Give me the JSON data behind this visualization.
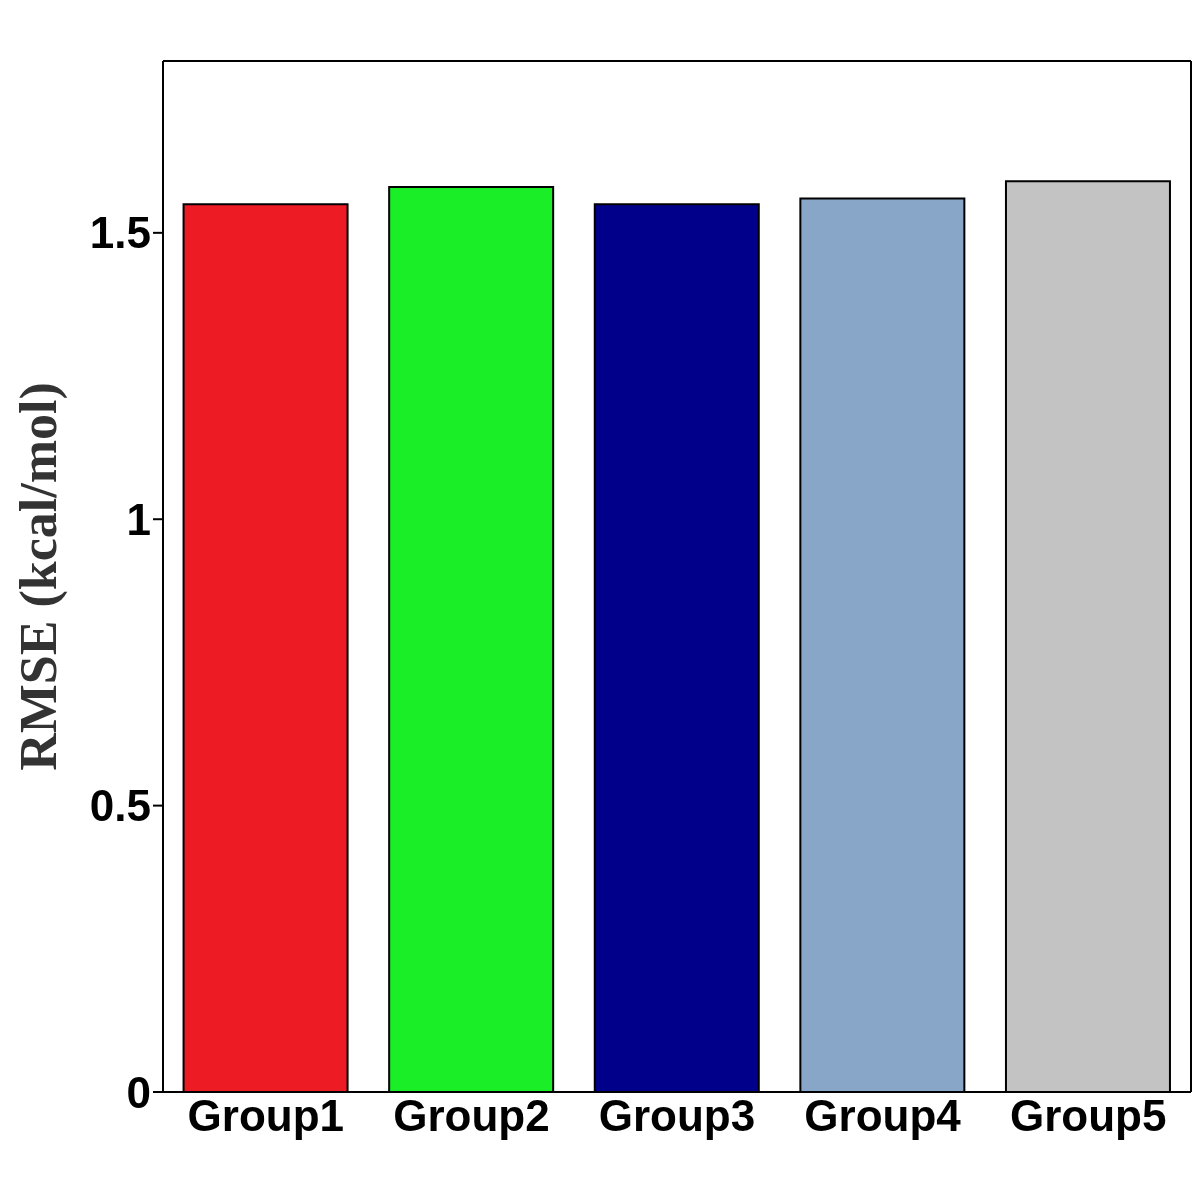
{
  "chart_data": {
    "type": "bar",
    "ylabel": "RMSE (kcal/mol)",
    "categories": [
      "Group1",
      "Group2",
      "Group3",
      "Group4",
      "Group5"
    ],
    "values": [
      1.55,
      1.58,
      1.55,
      1.56,
      1.59
    ],
    "colors": [
      "#ed1c24",
      "#1aee26",
      "#00008b",
      "#88a6c8",
      "#c3c3c3"
    ],
    "ylim": [
      0,
      1.8
    ],
    "yticks": [
      0,
      0.5,
      1,
      1.5
    ],
    "grid": false,
    "legend": false
  }
}
